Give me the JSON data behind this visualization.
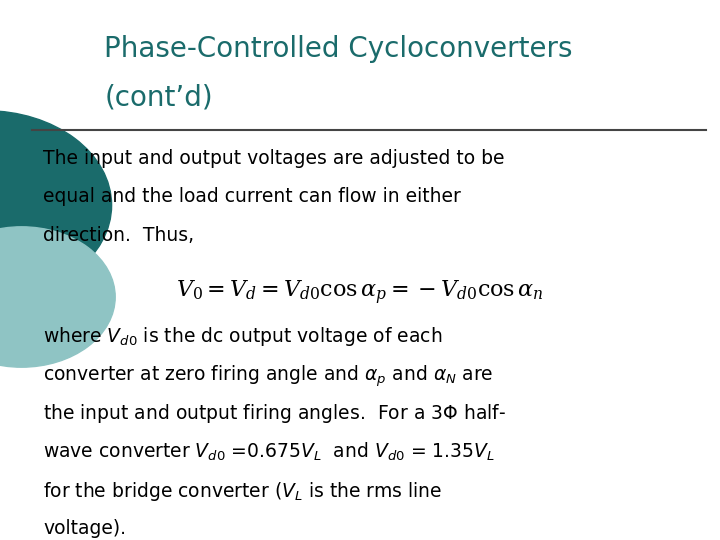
{
  "title_line1": "Phase-Controlled Cycloconverters",
  "title_line2": "(cont’d)",
  "title_color": "#1a6b6b",
  "background_color": "#ffffff",
  "body_text_color": "#000000",
  "line_color": "#444444",
  "body_fontsize": 13.5,
  "title_fontsize": 20,
  "formula_fontsize": 15,
  "circle_outer_color": "#1a6b6b",
  "circle_inner_color": "#8fc4c4",
  "para1_line1": "The input and output voltages are adjusted to be",
  "para1_line2": "equal and the load current can flow in either",
  "para1_line3": "direction.  Thus,",
  "para2_line1": "where $V_{d0}$ is the dc output voltage of each",
  "para2_line2": "converter at zero firing angle and $\\alpha_p$ and $\\alpha_N$ are",
  "para2_line3": "the input and output firing angles.  For a 3$\\Phi$ half-",
  "para2_line4": "wave converter $V_{d0}$ =0.675$V_L$  and $V_{d0}$ = 1.35$V_L$",
  "para2_line5": "for the bridge converter ($V_L$ is the rms line",
  "para2_line6": "voltage).",
  "formula": "$V_0 = V_d = V_{d0}\\cos\\alpha_p = -V_{d0}\\cos\\alpha_n$"
}
